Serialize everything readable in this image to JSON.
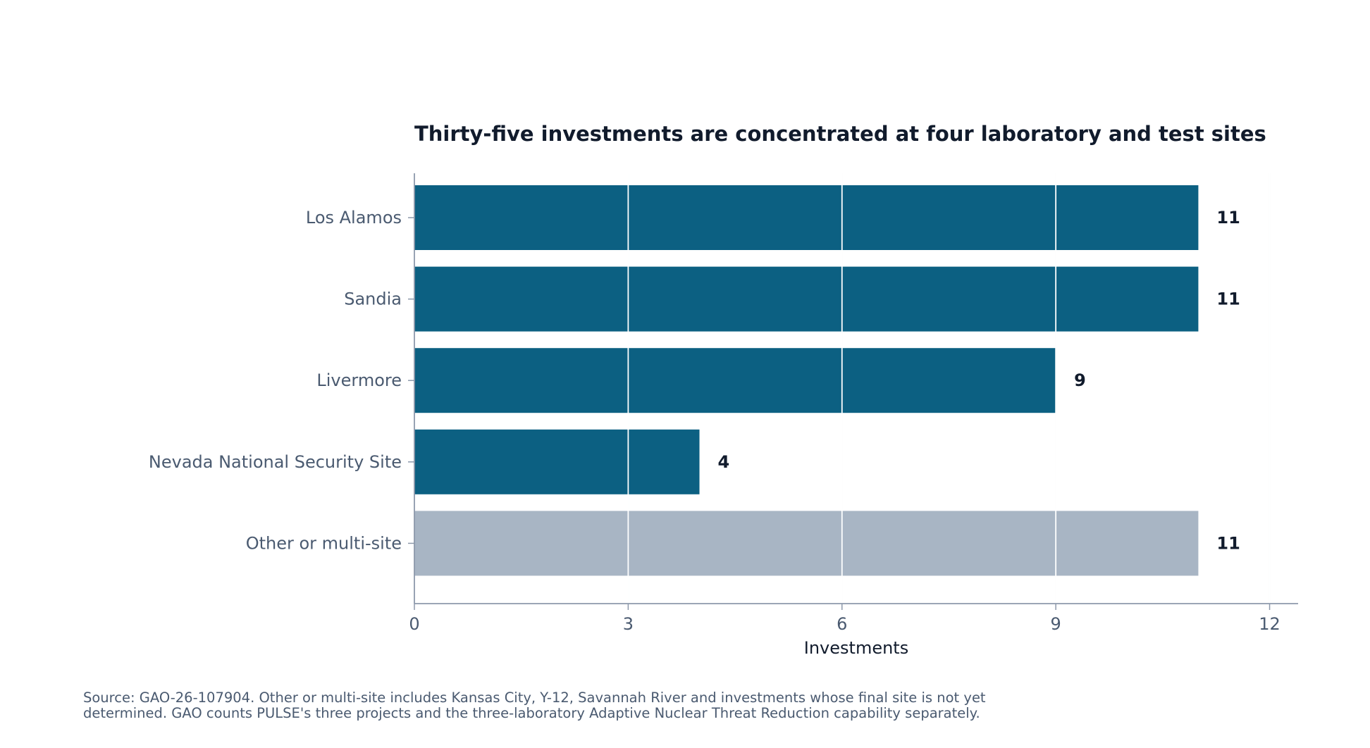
{
  "chart_data": {
    "type": "bar",
    "orientation": "horizontal",
    "title": "Thirty-five investments are concentrated at four laboratory and test sites",
    "xlabel": "Investments",
    "ylabel": "",
    "categories": [
      "Los Alamos",
      "Sandia",
      "Livermore",
      "Nevada National Security Site",
      "Other or multi-site"
    ],
    "values": [
      11,
      11,
      9,
      4,
      11
    ],
    "bar_colors": [
      "#0c6082",
      "#0c6082",
      "#0c6082",
      "#0c6082",
      "#a8b5c4"
    ],
    "xlim": [
      0,
      12.4
    ],
    "x_ticks": [
      0,
      3,
      6,
      9,
      12
    ],
    "grid": "vertical",
    "legend": "none"
  },
  "note": "Source: GAO-26-107904. Other or multi-site includes Kansas City, Y-12, Savannah River and investments whose final site is not yet determined. GAO counts PULSE's three projects and the three-laboratory Adaptive Nuclear Threat Reduction capability separately.",
  "colors": {
    "primary_bar": "#0c6082",
    "other_bar": "#a8b5c4",
    "grid": "#dfe3ec",
    "axis": "#8d99ab",
    "title": "#111b2c",
    "label": "#4a5a70"
  }
}
